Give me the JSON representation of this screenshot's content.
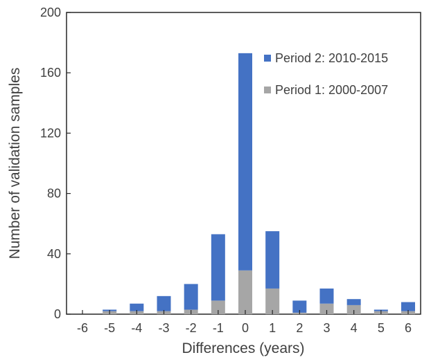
{
  "chart_data": {
    "type": "bar",
    "stacked": true,
    "title": "",
    "xlabel": "Differences (years)",
    "ylabel": "Number of validation samples",
    "categories": [
      "-6",
      "-5",
      "-4",
      "-3",
      "-2",
      "-1",
      "0",
      "1",
      "2",
      "3",
      "4",
      "5",
      "6"
    ],
    "ylim": [
      0,
      200
    ],
    "yticks": [
      "0",
      "40",
      "80",
      "120",
      "160",
      "200"
    ],
    "grid": false,
    "legend_position": "top-right",
    "series": [
      {
        "name": "Period 1: 2000-2007",
        "color": "#a6a6a6",
        "values": [
          0,
          2,
          2,
          2,
          3,
          9,
          29,
          17,
          1,
          7,
          6,
          2,
          2
        ]
      },
      {
        "name": "Period 2: 2010-2015",
        "color": "#4472c4",
        "values": [
          0,
          1,
          5,
          10,
          17,
          44,
          144,
          38,
          8,
          10,
          4,
          1,
          6
        ]
      }
    ],
    "legend_order": [
      1,
      0
    ]
  }
}
